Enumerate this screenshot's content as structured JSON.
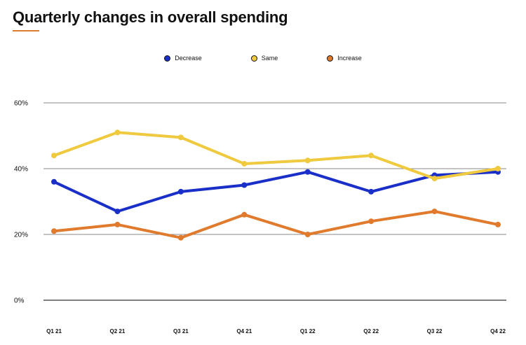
{
  "header": {
    "title": "Quarterly changes in overall spending"
  },
  "chart_data": {
    "type": "line",
    "title": "Quarterly changes in overall spending",
    "xlabel": "",
    "ylabel": "",
    "x": [
      "Q1 21",
      "Q2 21",
      "Q3 21",
      "Q4 21",
      "Q1 22",
      "Q2 22",
      "Q3 22",
      "Q4 22"
    ],
    "y_ticks": [
      "0%",
      "20%",
      "40%",
      "60%"
    ],
    "ylim": [
      0,
      60
    ],
    "grid": true,
    "legend_position": "top-center",
    "series": [
      {
        "name": "Decrease",
        "color": "#1a2fc8",
        "values": [
          36,
          27,
          33,
          35,
          39,
          33,
          38,
          39
        ]
      },
      {
        "name": "Same",
        "color": "#efc93e",
        "values": [
          44,
          51,
          49.5,
          41.5,
          42.5,
          44,
          37,
          40
        ]
      },
      {
        "name": "Increase",
        "color": "#e07b2e",
        "values": [
          21,
          23,
          19,
          26,
          20,
          24,
          27,
          23
        ]
      }
    ]
  }
}
